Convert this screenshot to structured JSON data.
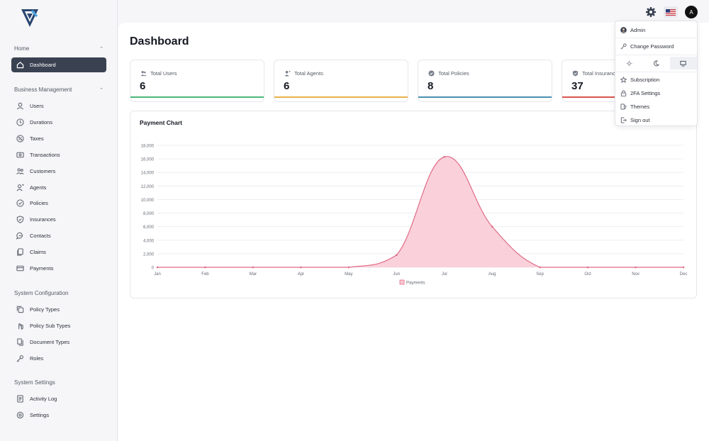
{
  "sidebar": {
    "home_section": "Home",
    "dashboard": "Dashboard",
    "business_section": "Business Management",
    "business_items": [
      {
        "label": "Users",
        "icon": "user-icon"
      },
      {
        "label": "Durations",
        "icon": "clock-icon"
      },
      {
        "label": "Taxes",
        "icon": "percent-icon"
      },
      {
        "label": "Transactions",
        "icon": "transactions-icon"
      },
      {
        "label": "Customers",
        "icon": "customers-icon"
      },
      {
        "label": "Agents",
        "icon": "agent-icon"
      },
      {
        "label": "Policies",
        "icon": "policy-icon"
      },
      {
        "label": "Insurances",
        "icon": "shield-check-icon"
      },
      {
        "label": "Contacts",
        "icon": "chat-icon"
      },
      {
        "label": "Claims",
        "icon": "claims-icon"
      },
      {
        "label": "Payments",
        "icon": "payments-icon"
      }
    ],
    "config_section": "System Configuration",
    "config_items": [
      {
        "label": "Policy Types",
        "icon": "copy-icon"
      },
      {
        "label": "Policy Sub Types",
        "icon": "hand-icon"
      },
      {
        "label": "Document Types",
        "icon": "documents-icon"
      },
      {
        "label": "Roles",
        "icon": "key-icon"
      }
    ],
    "settings_section": "System Settings",
    "settings_items": [
      {
        "label": "Activity Log",
        "icon": "log-icon"
      },
      {
        "label": "Settings",
        "icon": "settings-icon"
      }
    ]
  },
  "header": {
    "avatar_letter": "A"
  },
  "main": {
    "title": "Dashboard",
    "cards": [
      {
        "label": "Total Users",
        "value": "6",
        "color": "#4bb77a"
      },
      {
        "label": "Total Agents",
        "value": "6",
        "color": "#e9b24a"
      },
      {
        "label": "Total Policies",
        "value": "8",
        "color": "#4a8fb0"
      },
      {
        "label": "Total Insurances",
        "value": "37",
        "color": "#d9534f"
      }
    ]
  },
  "chart_panel": {
    "title": "Payment Chart"
  },
  "chart_data": {
    "type": "area",
    "title": "Payment Chart",
    "categories": [
      "Jan",
      "Feb",
      "Mar",
      "Apr",
      "May",
      "Jun",
      "Jul",
      "Aug",
      "Sep",
      "Oct",
      "Nov",
      "Dec"
    ],
    "series": [
      {
        "name": "Payments",
        "values": [
          0,
          0,
          0,
          0,
          0,
          1800,
          16300,
          6000,
          0,
          0,
          0,
          0
        ],
        "color": "#e06b86",
        "fill": "#f9c9d3"
      }
    ],
    "ylim": [
      0,
      18000
    ],
    "yticks": [
      "0",
      "2,000",
      "4,000",
      "6,000",
      "8,000",
      "10,000",
      "12,000",
      "14,000",
      "16,000",
      "18,000"
    ],
    "grid": true,
    "legend": "bottom-center"
  },
  "dropdown": {
    "admin": "Admin",
    "change_password": "Change Password",
    "subscription": "Subscription",
    "twofa": "2FA Settings",
    "themes": "Themes",
    "sign_out": "Sign out"
  }
}
